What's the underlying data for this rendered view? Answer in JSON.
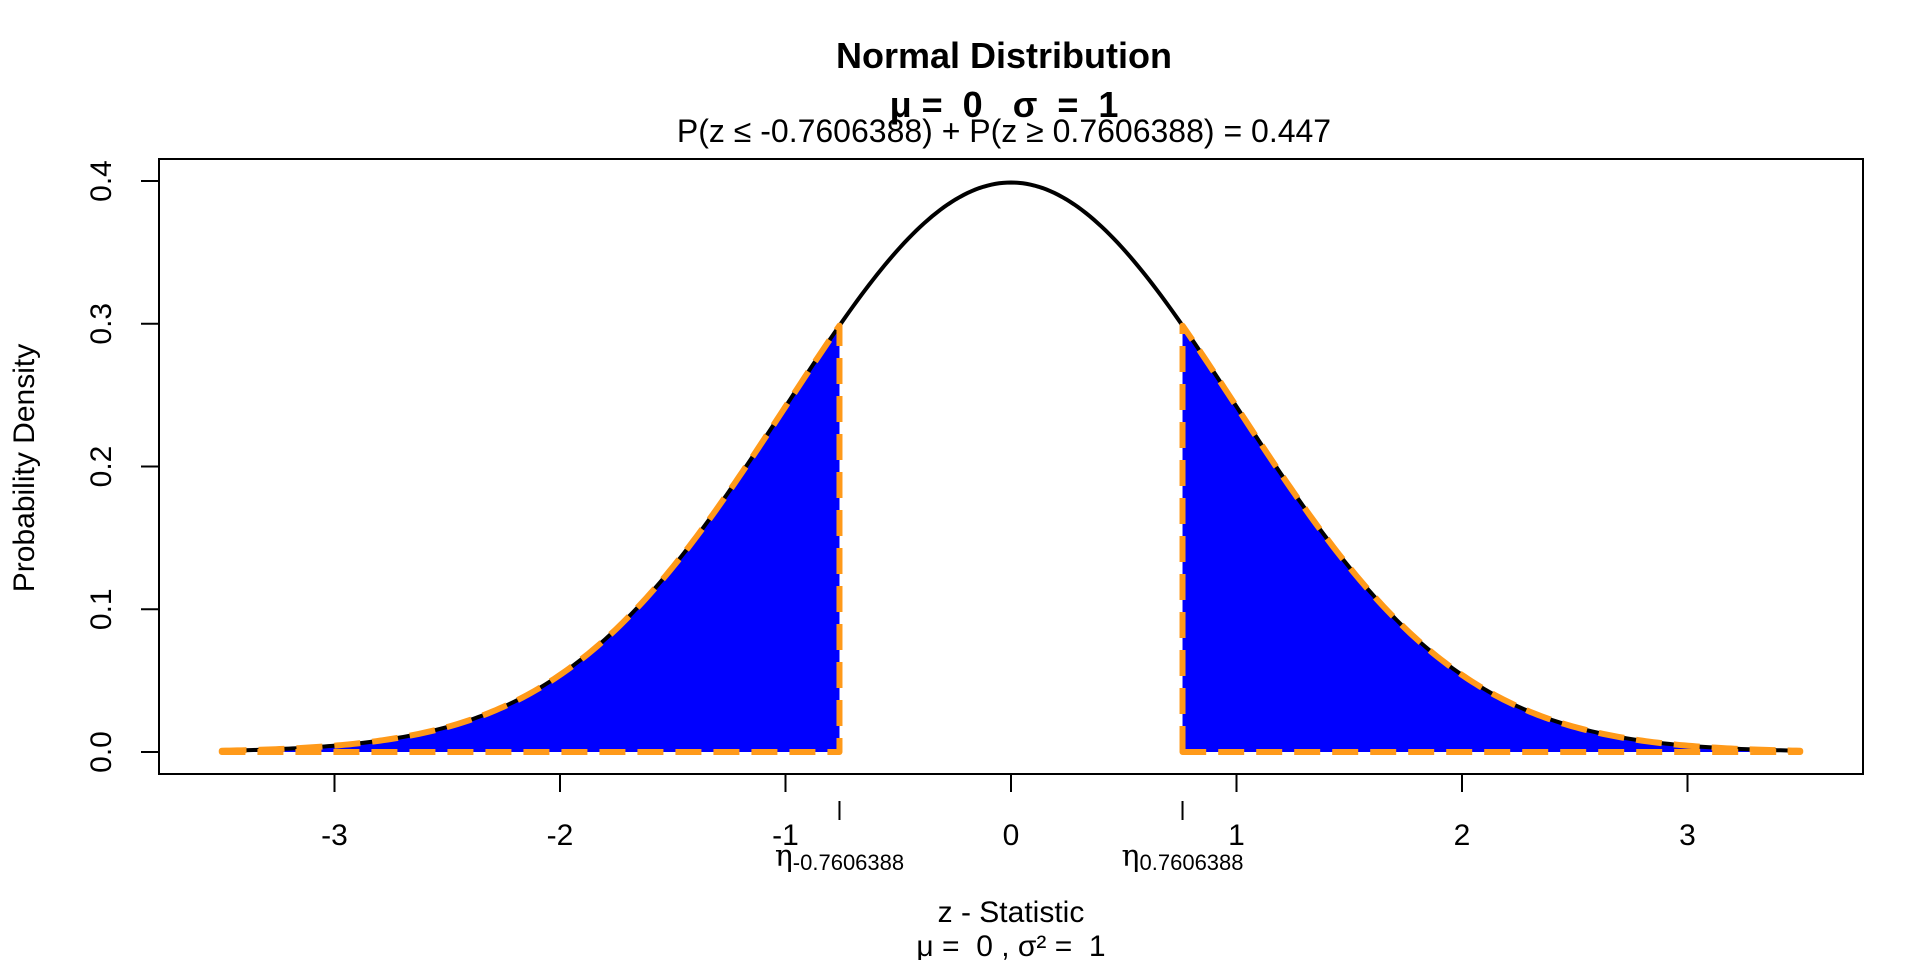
{
  "chart_data": {
    "type": "area",
    "title": "Normal Distribution",
    "subtitle": "μ =  0   σ  =  1",
    "probability_label": "P(z ≤ -0.7606388) + P(z ≥ 0.7606388) = 0.447",
    "xlabel": "z - Statistic",
    "xlabel_sub": "μ =  0 , σ² =  1",
    "ylabel": "Probability Density",
    "mu": 0,
    "sigma": 1,
    "xlim": [
      -3.5,
      3.5
    ],
    "ylim": [
      0,
      0.4
    ],
    "x_ticks": [
      -3,
      -2,
      -1,
      0,
      1,
      2,
      3
    ],
    "x_tick_labels": [
      "-3",
      "-2",
      "-1",
      "0",
      "1",
      "2",
      "3"
    ],
    "y_ticks": [
      0.0,
      0.1,
      0.2,
      0.3,
      0.4
    ],
    "y_tick_labels": [
      "0.0",
      "0.1",
      "0.2",
      "0.3",
      "0.4"
    ],
    "critical_values": [
      -0.7606388,
      0.7606388
    ],
    "critical_labels": [
      {
        "symbol": "η",
        "subscript": "-0.7606388"
      },
      {
        "symbol": "η",
        "subscript": "0.7606388"
      }
    ],
    "shaded_regions": [
      {
        "name": "lower tail",
        "from": -3.5,
        "to": -0.7606388
      },
      {
        "name": "upper tail",
        "from": 0.7606388,
        "to": 3.5
      }
    ],
    "probability": 0.447,
    "colors": {
      "curve": "#000000",
      "fill": "#0000ff",
      "outline": "#ff9a1a"
    }
  }
}
